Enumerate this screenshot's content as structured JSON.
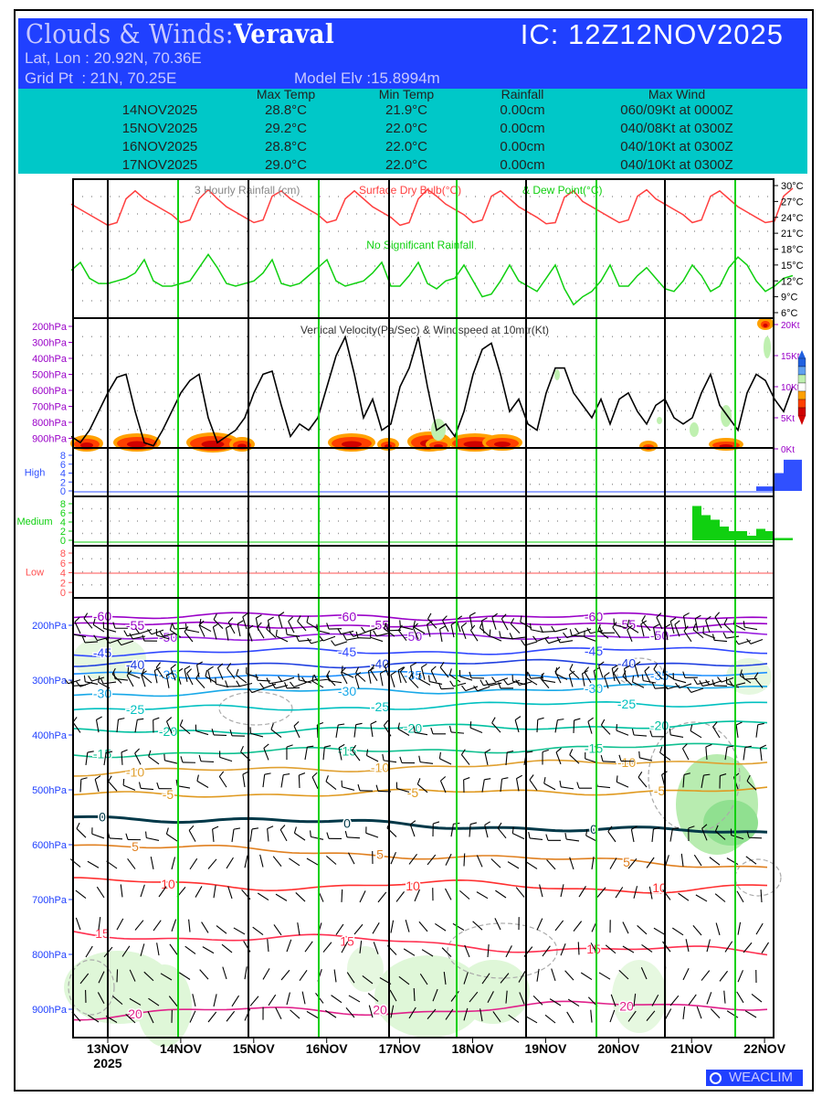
{
  "header": {
    "title_prefix": "Clouds & Winds:",
    "station": "Veraval",
    "ic": "IC: 12Z12NOV2025",
    "latlon": "Lat, Lon : 20.92N, 70.36E",
    "grid": "Grid Pt  : 21N, 70.25E",
    "elev": "Model Elv :15.8994m"
  },
  "summary": {
    "columns": [
      "Max Temp",
      "Min Temp",
      "Rainfall",
      "Max Wind"
    ],
    "rows": [
      {
        "date": "14NOV2025",
        "max": "28.8°C",
        "min": "21.9°C",
        "rain": "0.00cm",
        "wind": "060/09Kt at 0000Z"
      },
      {
        "date": "15NOV2025",
        "max": "29.2°C",
        "min": "22.0°C",
        "rain": "0.00cm",
        "wind": "040/08Kt at 0300Z"
      },
      {
        "date": "16NOV2025",
        "max": "28.8°C",
        "min": "22.0°C",
        "rain": "0.00cm",
        "wind": "040/10Kt at 0300Z"
      },
      {
        "date": "17NOV2025",
        "max": "29.0°C",
        "min": "22.0°C",
        "rain": "0.00cm",
        "wind": "040/10Kt at 0300Z"
      }
    ]
  },
  "chart_data": [
    {
      "type": "line",
      "title_parts": [
        "3 Hourly Rainfall (cm)",
        "Surface Dry Bulb(°C)",
        "& Dew Point(°C)"
      ],
      "annotation": "No Significant Rainfall",
      "x_start": "12Z12NOV2025",
      "x_step_hours": 3,
      "y_ticks": [
        "30°C",
        "27°C",
        "24°C",
        "21°C",
        "18°C",
        "15°C",
        "12°C",
        "9°C",
        "6°C"
      ],
      "ylim": [
        6,
        30
      ],
      "series": [
        {
          "name": "Surface Dry Bulb",
          "color": "#ff4040",
          "values": [
            26.5,
            25.5,
            24.5,
            23.5,
            22.5,
            23,
            27.5,
            29,
            27.5,
            26.5,
            25.5,
            24.5,
            23,
            23.5,
            27.5,
            29.2,
            27.5,
            26,
            25,
            24,
            23,
            23.5,
            28,
            29,
            27.5,
            26.5,
            25.5,
            24.5,
            23,
            23.5,
            27.5,
            29,
            27.5,
            26,
            25,
            24,
            22.5,
            23,
            27.5,
            29.3,
            28,
            26.5,
            25.5,
            24.5,
            23,
            23.5,
            28,
            29,
            27.5,
            26,
            25,
            24,
            22.8,
            23,
            27.8,
            29,
            27,
            26,
            25,
            24,
            23,
            23.5,
            28,
            29.2,
            27.5,
            26.5,
            25.5,
            24.5,
            23,
            23.5,
            28,
            29,
            27.5,
            26,
            25,
            24,
            23,
            23.3,
            28,
            29.5
          ]
        },
        {
          "name": "Dew Point",
          "color": "#10d010",
          "values": [
            14,
            15.5,
            12.5,
            11.5,
            11.5,
            12,
            12.5,
            13.5,
            16,
            12,
            11,
            11,
            11.5,
            12,
            14.5,
            17,
            14.5,
            11.5,
            11,
            11.5,
            12,
            13.5,
            16,
            11.5,
            11,
            11.5,
            13,
            14.5,
            16,
            12,
            11,
            11.5,
            12,
            13.5,
            15.5,
            11,
            11,
            13,
            15.5,
            11.5,
            10.5,
            12,
            12.5,
            15,
            12,
            9,
            9.5,
            12,
            15,
            12,
            11,
            10,
            12.5,
            15,
            10.5,
            7.5,
            9,
            10,
            12,
            15,
            11,
            11,
            13,
            14.5,
            12.5,
            10.5,
            10,
            12,
            15,
            13,
            10,
            11,
            14.5,
            16.5,
            15,
            12,
            10,
            11,
            12.5,
            13
          ]
        }
      ]
    },
    {
      "type": "line",
      "title": "Vertical Velocity(Pa/Sec) & Windspeed at 10mtr(Kt)",
      "left_ticks": [
        "200hPa",
        "300hPa",
        "400hPa",
        "500hPa",
        "600hPa",
        "700hPa",
        "800hPa",
        "900hPa"
      ],
      "right_ticks": [
        "20Kt",
        "15Kt",
        "10Kt",
        "5Kt",
        "0Kt"
      ],
      "ylim": [
        0,
        20
      ],
      "series": [
        {
          "name": "Windspeed 10m",
          "color": "#000000",
          "values": [
            2,
            1,
            3,
            6,
            9,
            11.5,
            12,
            6,
            1,
            0.5,
            3,
            6,
            9,
            11,
            12,
            5,
            1,
            2,
            3,
            5,
            9,
            12,
            12.5,
            7,
            2,
            4,
            3,
            5,
            10,
            15,
            18,
            12,
            5,
            8,
            3,
            4,
            10,
            13,
            18,
            10,
            3,
            4,
            2,
            6,
            12,
            16,
            17,
            12,
            6,
            8,
            4,
            3,
            9,
            13,
            13,
            9,
            7,
            5,
            8,
            4,
            8,
            9,
            6,
            4,
            7,
            8,
            5,
            4,
            5,
            9,
            12,
            7,
            5,
            3,
            9,
            12,
            11,
            8,
            6,
            10
          ]
        }
      ],
      "colorbar_labels": [
        "",
        "",
        "",
        "",
        "",
        "",
        ""
      ]
    },
    {
      "type": "bar",
      "panels": [
        {
          "name": "High",
          "color": "#3050ff",
          "y_ticks": [
            "8",
            "6",
            "4",
            "2",
            "0"
          ],
          "values_tail": [
            0,
            0,
            0,
            0,
            0,
            0,
            0,
            0,
            1,
            1,
            4,
            7,
            7
          ]
        },
        {
          "name": "Medium",
          "color": "#10d010",
          "y_ticks": [
            "8",
            "6",
            "4",
            "2",
            "0"
          ],
          "values_tail": [
            0,
            7.5,
            5.5,
            4.5,
            3,
            2,
            2,
            1,
            2.5,
            2,
            0.5,
            0.5,
            0
          ]
        },
        {
          "name": "Low",
          "color": "#ff5050",
          "y_ticks": [
            "8",
            "6",
            "4",
            "2",
            "0"
          ],
          "values_tail": [
            0,
            0,
            0,
            0,
            0,
            0,
            0,
            0,
            0,
            0,
            0,
            0,
            0
          ]
        }
      ]
    },
    {
      "type": "contour",
      "y_ticks": [
        "200hPa",
        "300hPa",
        "400hPa",
        "500hPa",
        "600hPa",
        "700hPa",
        "800hPa",
        "900hPa"
      ],
      "x_ticks": [
        "13NOV",
        "14NOV",
        "15NOV",
        "16NOV",
        "17NOV",
        "18NOV",
        "19NOV",
        "20NOV",
        "21NOV",
        "22NOV"
      ],
      "x_year": "2025",
      "isotherms": [
        {
          "label": "-60",
          "color": "#9a00c8",
          "p": [
            183,
            185
          ]
        },
        {
          "label": "-55",
          "color": "#9a00c8",
          "p": [
            200,
            198
          ]
        },
        {
          "label": "-50",
          "color": "#9a20e0",
          "p": [
            222,
            218
          ]
        },
        {
          "label": "-45",
          "color": "#3048ff",
          "p": [
            250,
            245
          ]
        },
        {
          "label": "-40",
          "color": "#2040e0",
          "p": [
            272,
            268
          ]
        },
        {
          "label": "-35",
          "color": "#1e90ff",
          "p": [
            290,
            292
          ]
        },
        {
          "label": "-30",
          "color": "#18a8e8",
          "p": [
            325,
            312
          ]
        },
        {
          "label": "-25",
          "color": "#00c0c0",
          "p": [
            355,
            340
          ]
        },
        {
          "label": "-20",
          "color": "#00c0a0",
          "p": [
            395,
            380
          ]
        },
        {
          "label": "-15",
          "color": "#10c090",
          "p": [
            435,
            420
          ]
        },
        {
          "label": "-10",
          "color": "#e0a030",
          "p": [
            470,
            445
          ]
        },
        {
          "label": "-5",
          "color": "#e09a20",
          "p": [
            510,
            500
          ]
        },
        {
          "label": "0",
          "color": "#003848",
          "p": [
            548,
            580
          ]
        },
        {
          "label": "5",
          "color": "#e08020",
          "p": [
            600,
            640
          ]
        },
        {
          "label": "10",
          "color": "#ff3030",
          "p": [
            670,
            680
          ]
        },
        {
          "label": "15",
          "color": "#ff3050",
          "p": [
            760,
            800
          ]
        },
        {
          "label": "20",
          "color": "#e0208a",
          "p": [
            910,
            890
          ]
        }
      ]
    }
  ],
  "footer": {
    "logo": "WEACLIM"
  }
}
